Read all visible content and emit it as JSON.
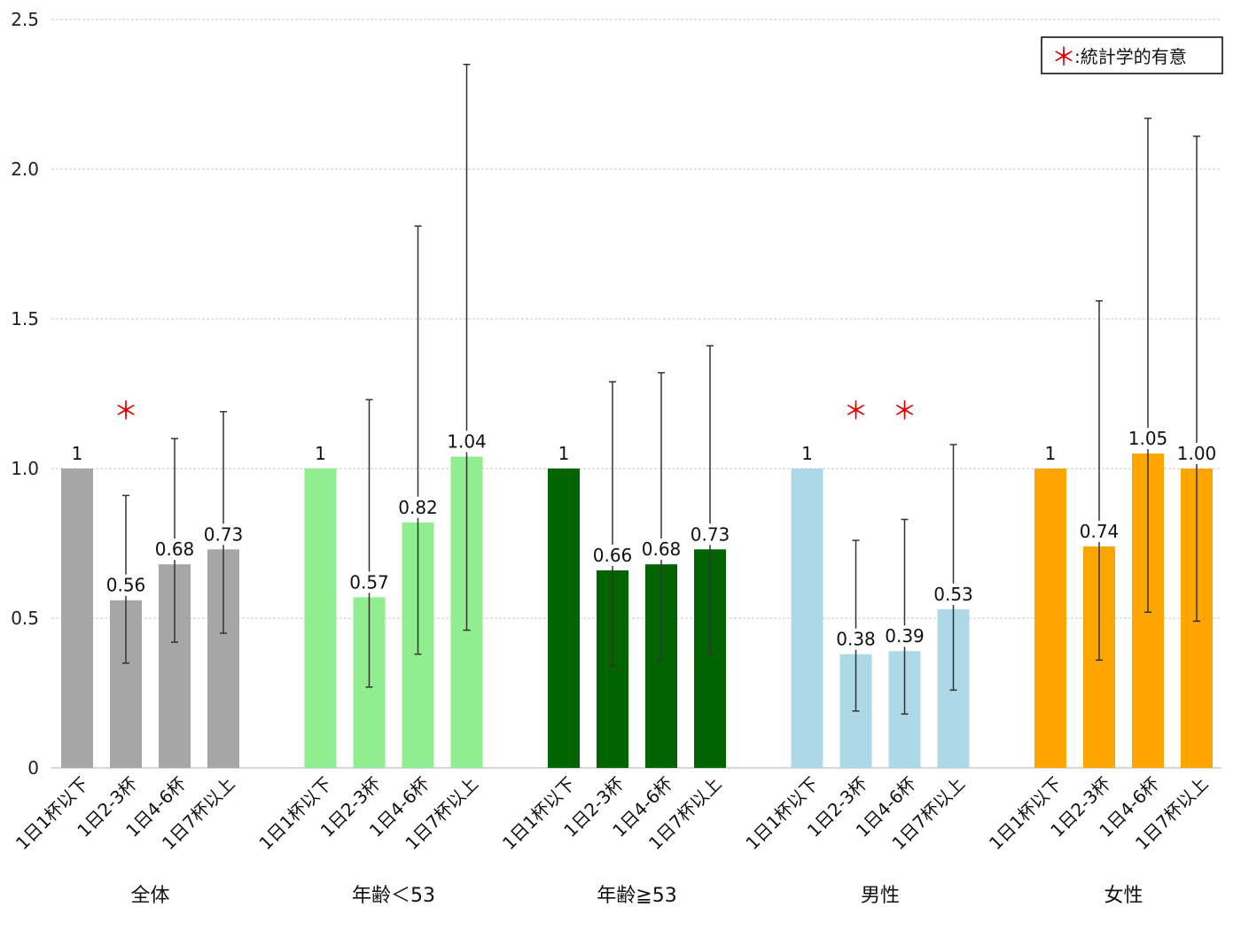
{
  "chart_data": {
    "type": "bar",
    "ylim": [
      0,
      2.5
    ],
    "yticks": [
      "0",
      "0.5",
      "1.0",
      "1.5",
      "2.0",
      "2.5"
    ],
    "ytick_values": [
      0,
      0.5,
      1.0,
      1.5,
      2.0,
      2.5
    ],
    "grid": true,
    "categories": [
      "1日1杯以下",
      "1日2-3杯",
      "1日4-6杯",
      "1日7杯以上"
    ],
    "legend": {
      "position": "top-right",
      "marker": "＊",
      "text": ":統計学的有意"
    },
    "significance_marker": "＊",
    "groups": [
      {
        "name": "全体",
        "color": "#a6a6a6",
        "values": [
          1,
          0.56,
          0.68,
          0.73
        ],
        "labels": [
          "1",
          "0.56",
          "0.68",
          "0.73"
        ],
        "ci_low": [
          null,
          0.35,
          0.42,
          0.45
        ],
        "ci_high": [
          null,
          0.91,
          1.1,
          1.19
        ],
        "significant": [
          false,
          true,
          false,
          false
        ]
      },
      {
        "name": "年齢＜53",
        "color": "#90ee90",
        "values": [
          1,
          0.57,
          0.82,
          1.04
        ],
        "labels": [
          "1",
          "0.57",
          "0.82",
          "1.04"
        ],
        "ci_low": [
          null,
          0.27,
          0.38,
          0.46
        ],
        "ci_high": [
          null,
          1.23,
          1.81,
          2.35
        ],
        "significant": [
          false,
          false,
          false,
          false
        ]
      },
      {
        "name": "年齢≧53",
        "color": "#006400",
        "values": [
          1,
          0.66,
          0.68,
          0.73
        ],
        "labels": [
          "1",
          "0.66",
          "0.68",
          "0.73"
        ],
        "ci_low": [
          null,
          0.34,
          0.36,
          0.38
        ],
        "ci_high": [
          null,
          1.29,
          1.32,
          1.41
        ],
        "significant": [
          false,
          false,
          false,
          false
        ]
      },
      {
        "name": "男性",
        "color": "#add8e6",
        "values": [
          1,
          0.38,
          0.39,
          0.53
        ],
        "labels": [
          "1",
          "0.38",
          "0.39",
          "0.53"
        ],
        "ci_low": [
          null,
          0.19,
          0.18,
          0.26
        ],
        "ci_high": [
          null,
          0.76,
          0.83,
          1.08
        ],
        "significant": [
          false,
          true,
          true,
          false
        ]
      },
      {
        "name": "女性",
        "color": "#ffa500",
        "values": [
          1,
          0.74,
          1.05,
          1.0
        ],
        "labels": [
          "1",
          "0.74",
          "1.05",
          "1.00"
        ],
        "ci_low": [
          null,
          0.36,
          0.52,
          0.49
        ],
        "ci_high": [
          null,
          1.56,
          2.17,
          2.11
        ],
        "significant": [
          false,
          false,
          false,
          false
        ]
      }
    ]
  }
}
